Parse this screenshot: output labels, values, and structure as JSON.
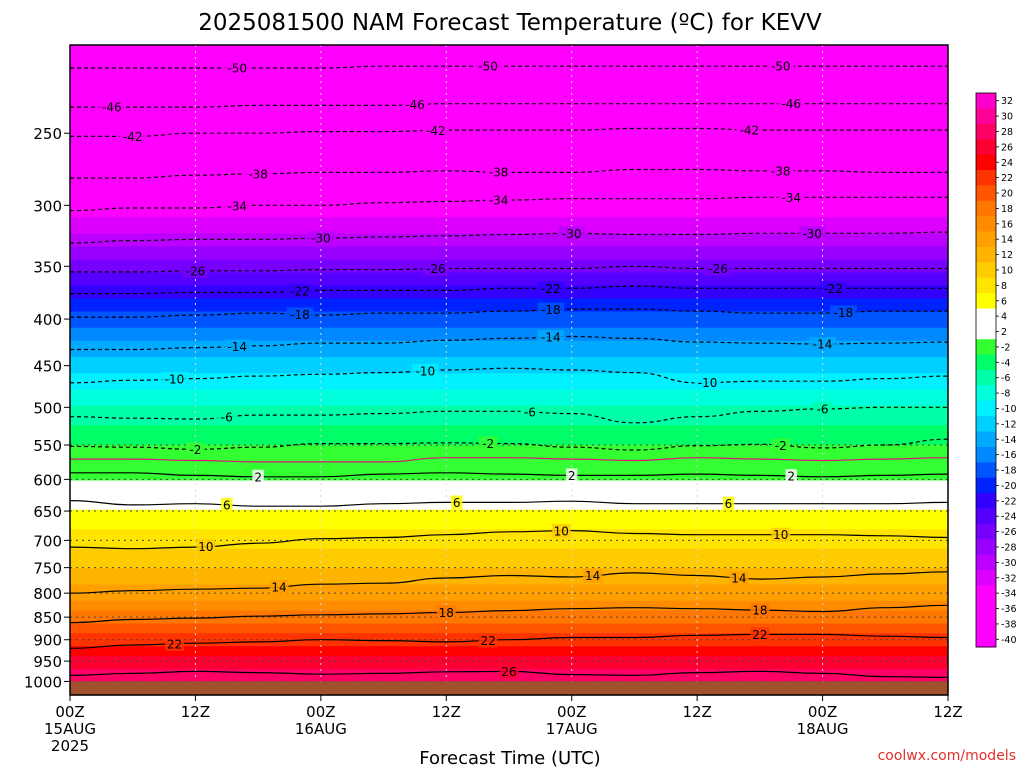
{
  "chart_data": {
    "type": "heatmap",
    "title": "2025081500 NAM Forecast Temperature (ºC) for KEVV",
    "xlabel": "Forecast Time (UTC)",
    "ylabel": "",
    "credit": "coolwx.com/models",
    "x_hours_range": [
      0,
      84
    ],
    "x_ticks": [
      {
        "h": 0,
        "l1": "00Z",
        "l2": "15AUG",
        "l3": "2025"
      },
      {
        "h": 12,
        "l1": "12Z",
        "l2": "",
        "l3": ""
      },
      {
        "h": 24,
        "l1": "00Z",
        "l2": "16AUG",
        "l3": ""
      },
      {
        "h": 36,
        "l1": "12Z",
        "l2": "",
        "l3": ""
      },
      {
        "h": 48,
        "l1": "00Z",
        "l2": "17AUG",
        "l3": ""
      },
      {
        "h": 60,
        "l1": "12Z",
        "l2": "",
        "l3": ""
      },
      {
        "h": 72,
        "l1": "00Z",
        "l2": "18AUG",
        "l3": ""
      },
      {
        "h": 84,
        "l1": "12Z",
        "l2": "",
        "l3": ""
      }
    ],
    "y_pressure_range_hpa": [
      1035,
      200
    ],
    "y_scale": "log-pressure",
    "y_ticks": [
      250,
      300,
      350,
      400,
      450,
      500,
      550,
      600,
      650,
      700,
      750,
      800,
      850,
      900,
      950,
      1000
    ],
    "ground_level_hpa": 1000,
    "colorbar": {
      "ticks": [
        "32",
        "30",
        "28",
        "26",
        "24",
        "22",
        "20",
        "18",
        "16",
        "14",
        "12",
        "10",
        "8",
        "6",
        "4",
        "2",
        "-2",
        "-4",
        "-6",
        "-8",
        "-10",
        "-12",
        "-14",
        "-16",
        "-18",
        "-20",
        "-22",
        "-24",
        "-26",
        "-28",
        "-30",
        "-32",
        "-34",
        "-36",
        "-38",
        "-40"
      ],
      "colors": [
        "#ff00cc",
        "#ff0099",
        "#ff0066",
        "#ff0033",
        "#ff0000",
        "#ff3300",
        "#ff5500",
        "#ff7700",
        "#ff8c00",
        "#ffa000",
        "#ffb400",
        "#ffcc00",
        "#ffe400",
        "#ffff00",
        "#ffffff",
        "#ffffff",
        "#33ff33",
        "#00ff66",
        "#00ffaa",
        "#00ffdd",
        "#00f0ff",
        "#00d0ff",
        "#00aaff",
        "#0088ff",
        "#0055ff",
        "#0022ff",
        "#3300ff",
        "#5500ff",
        "#7700ff",
        "#9900ff",
        "#bb00ff",
        "#dd00ff",
        "#ff00ff",
        "#ff00ff",
        "#ff00ff",
        "#ff00ff"
      ]
    },
    "temperature_profile": [
      {
        "p": 1000,
        "t": 30
      },
      {
        "p": 950,
        "t": 27
      },
      {
        "p": 900,
        "t": 23
      },
      {
        "p": 850,
        "t": 19
      },
      {
        "p": 800,
        "t": 15
      },
      {
        "p": 750,
        "t": 12
      },
      {
        "p": 700,
        "t": 9
      },
      {
        "p": 650,
        "t": 6
      },
      {
        "p": 600,
        "t": 2
      },
      {
        "p": 575,
        "t": 0
      },
      {
        "p": 550,
        "t": -2
      },
      {
        "p": 500,
        "t": -6
      },
      {
        "p": 450,
        "t": -11
      },
      {
        "p": 400,
        "t": -17
      },
      {
        "p": 350,
        "t": -25
      },
      {
        "p": 300,
        "t": -34
      },
      {
        "p": 250,
        "t": -43
      },
      {
        "p": 200,
        "t": -52
      }
    ],
    "contours": [
      {
        "value": 26,
        "style": "solid",
        "label_hours": [
          42
        ],
        "p": [
          985,
          980,
          975,
          978,
          982,
          980,
          976,
          975,
          983,
          985,
          978,
          975,
          980,
          988,
          990
        ]
      },
      {
        "value": 22,
        "style": "solid",
        "label_hours": [
          10,
          40,
          66
        ],
        "p": [
          920,
          912,
          908,
          905,
          900,
          902,
          905,
          900,
          895,
          895,
          890,
          888,
          888,
          892,
          895
        ]
      },
      {
        "value": 18,
        "style": "solid",
        "label_hours": [
          36,
          66
        ],
        "p": [
          862,
          855,
          852,
          848,
          845,
          843,
          840,
          836,
          832,
          830,
          832,
          835,
          838,
          830,
          825
        ]
      },
      {
        "value": 14,
        "style": "solid",
        "label_hours": [
          20,
          50,
          64
        ],
        "p": [
          800,
          795,
          792,
          790,
          782,
          780,
          770,
          765,
          768,
          760,
          765,
          772,
          768,
          762,
          758
        ]
      },
      {
        "value": 10,
        "style": "solid",
        "label_hours": [
          13,
          47,
          68
        ],
        "p": [
          712,
          715,
          712,
          705,
          697,
          695,
          690,
          685,
          683,
          688,
          690,
          690,
          690,
          692,
          695
        ]
      },
      {
        "value": 6,
        "style": "solid",
        "label_hours": [
          15,
          37,
          63
        ],
        "p": [
          633,
          640,
          638,
          642,
          642,
          638,
          636,
          636,
          634,
          638,
          638,
          638,
          638,
          638,
          636
        ]
      },
      {
        "value": 2,
        "style": "solid",
        "label_hours": [
          18,
          48,
          69
        ],
        "p": [
          590,
          590,
          594,
          596,
          596,
          592,
          590,
          592,
          594,
          594,
          592,
          594,
          596,
          594,
          592
        ]
      },
      {
        "value": 0,
        "style": "magenta",
        "label_hours": [],
        "p": [
          570,
          570,
          572,
          574,
          574,
          574,
          568,
          568,
          570,
          572,
          568,
          570,
          572,
          570,
          568
        ]
      },
      {
        "value": -2,
        "style": "dashed",
        "label_hours": [
          12,
          40,
          68
        ],
        "p": [
          552,
          553,
          556,
          553,
          548,
          548,
          547,
          548,
          553,
          557,
          551,
          549,
          554,
          550,
          542
        ]
      },
      {
        "value": -6,
        "style": "dashed",
        "label_hours": [
          15,
          44,
          72
        ],
        "p": [
          512,
          514,
          515,
          510,
          510,
          508,
          505,
          505,
          508,
          520,
          512,
          505,
          502,
          500,
          500
        ]
      },
      {
        "value": -10,
        "style": "dashed",
        "label_hours": [
          10,
          34,
          61
        ],
        "p": [
          470,
          467,
          465,
          462,
          460,
          458,
          455,
          453,
          455,
          458,
          470,
          468,
          468,
          465,
          462
        ]
      },
      {
        "value": -14,
        "style": "dashed",
        "label_hours": [
          16,
          46,
          72
        ],
        "p": [
          432,
          432,
          430,
          428,
          425,
          425,
          422,
          420,
          418,
          420,
          424,
          425,
          426,
          425,
          424
        ]
      },
      {
        "value": -18,
        "style": "dashed",
        "label_hours": [
          22,
          46,
          74
        ],
        "p": [
          398,
          398,
          396,
          394,
          396,
          394,
          394,
          392,
          390,
          390,
          392,
          394,
          394,
          392,
          392
        ]
      },
      {
        "value": -22,
        "style": "dashed",
        "label_hours": [
          22,
          46,
          73
        ],
        "p": [
          375,
          375,
          374,
          374,
          372,
          372,
          372,
          370,
          370,
          368,
          370,
          370,
          370,
          370,
          370
        ]
      },
      {
        "value": -26,
        "style": "dashed",
        "label_hours": [
          12,
          35,
          62
        ],
        "p": [
          355,
          355,
          354,
          354,
          353,
          353,
          352,
          352,
          352,
          350,
          352,
          352,
          352,
          352,
          352
        ]
      },
      {
        "value": -30,
        "style": "dashed",
        "label_hours": [
          24,
          48,
          71
        ],
        "p": [
          330,
          328,
          327,
          327,
          326,
          325,
          324,
          323,
          322,
          323,
          323,
          322,
          322,
          322,
          321
        ]
      },
      {
        "value": -34,
        "style": "dashed",
        "label_hours": [
          16,
          41,
          69
        ],
        "p": [
          304,
          302,
          302,
          300,
          300,
          298,
          297,
          296,
          295,
          295,
          295,
          294,
          294,
          294,
          294
        ]
      },
      {
        "value": -38,
        "style": "dashed",
        "label_hours": [
          18,
          41,
          68
        ],
        "p": [
          280,
          280,
          278,
          277,
          276,
          276,
          275,
          276,
          276,
          274,
          274,
          275,
          275,
          276,
          276
        ]
      },
      {
        "value": -42,
        "style": "dashed",
        "label_hours": [
          6,
          35,
          65
        ],
        "p": [
          252,
          252,
          250,
          250,
          249,
          249,
          248,
          248,
          248,
          247,
          247,
          248,
          248,
          248,
          248
        ]
      },
      {
        "value": -46,
        "style": "dashed",
        "label_hours": [
          4,
          33,
          69
        ],
        "p": [
          234,
          234,
          234,
          233,
          233,
          233,
          232,
          232,
          232,
          232,
          232,
          232,
          232,
          232,
          232
        ]
      },
      {
        "value": -50,
        "style": "dashed",
        "label_hours": [
          16,
          40,
          68
        ],
        "p": [
          212,
          212,
          212,
          212,
          212,
          211,
          211,
          211,
          211,
          211,
          211,
          211,
          211,
          211,
          211
        ]
      }
    ]
  }
}
